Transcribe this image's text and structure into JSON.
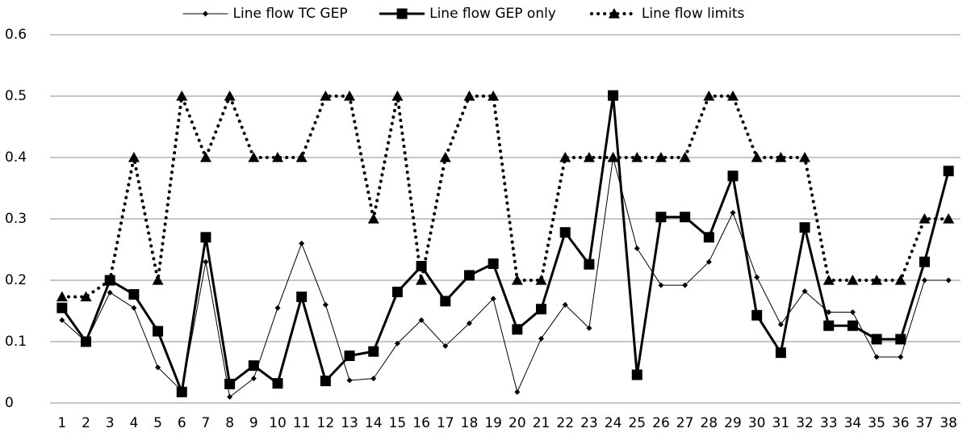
{
  "chart_data": {
    "type": "line",
    "categories": [
      "1",
      "2",
      "3",
      "4",
      "5",
      "6",
      "7",
      "8",
      "9",
      "10",
      "11",
      "12",
      "13",
      "14",
      "15",
      "16",
      "17",
      "18",
      "19",
      "20",
      "21",
      "22",
      "23",
      "24",
      "25",
      "26",
      "27",
      "28",
      "29",
      "30",
      "31",
      "32",
      "33",
      "34",
      "35",
      "36",
      "37",
      "38"
    ],
    "series": [
      {
        "name": "Line flow TC GEP",
        "color": "#000000",
        "line_width": 1,
        "line_style": "solid",
        "marker": "diamond",
        "values": [
          0.135,
          0.1,
          0.18,
          0.155,
          0.058,
          0.02,
          0.23,
          0.01,
          0.04,
          0.155,
          0.26,
          0.16,
          0.037,
          0.04,
          0.097,
          0.135,
          0.093,
          0.13,
          0.17,
          0.018,
          0.105,
          0.16,
          0.122,
          0.4,
          0.252,
          0.192,
          0.192,
          0.23,
          0.31,
          0.205,
          0.128,
          0.182,
          0.148,
          0.148,
          0.075,
          0.075,
          0.2,
          0.2
        ]
      },
      {
        "name": "Line flow GEP only",
        "color": "#000000",
        "line_width": 3,
        "line_style": "solid",
        "marker": "square",
        "values": [
          0.155,
          0.1,
          0.2,
          0.177,
          0.117,
          0.018,
          0.27,
          0.031,
          0.061,
          0.032,
          0.173,
          0.036,
          0.077,
          0.084,
          0.181,
          0.223,
          0.166,
          0.208,
          0.227,
          0.12,
          0.153,
          0.278,
          0.226,
          0.501,
          0.046,
          0.303,
          0.303,
          0.27,
          0.37,
          0.143,
          0.082,
          0.286,
          0.126,
          0.126,
          0.104,
          0.104,
          0.23,
          0.378
        ]
      },
      {
        "name": "Line flow limits",
        "color": "#000000",
        "line_width": 4,
        "line_style": "dotted",
        "marker": "triangle",
        "values": [
          0.173,
          0.173,
          0.2,
          0.4,
          0.2,
          0.5,
          0.4,
          0.5,
          0.4,
          0.4,
          0.4,
          0.5,
          0.5,
          0.3,
          0.5,
          0.2,
          0.4,
          0.5,
          0.5,
          0.2,
          0.2,
          0.4,
          0.4,
          0.4,
          0.4,
          0.4,
          0.4,
          0.5,
          0.5,
          0.4,
          0.4,
          0.4,
          0.2,
          0.2,
          0.2,
          0.2,
          0.3,
          0.3
        ]
      }
    ],
    "ylim": [
      0,
      0.6
    ],
    "yticks": [
      0,
      0.1,
      0.2,
      0.3,
      0.4,
      0.5,
      0.6
    ],
    "grid": true,
    "legend": "top"
  }
}
